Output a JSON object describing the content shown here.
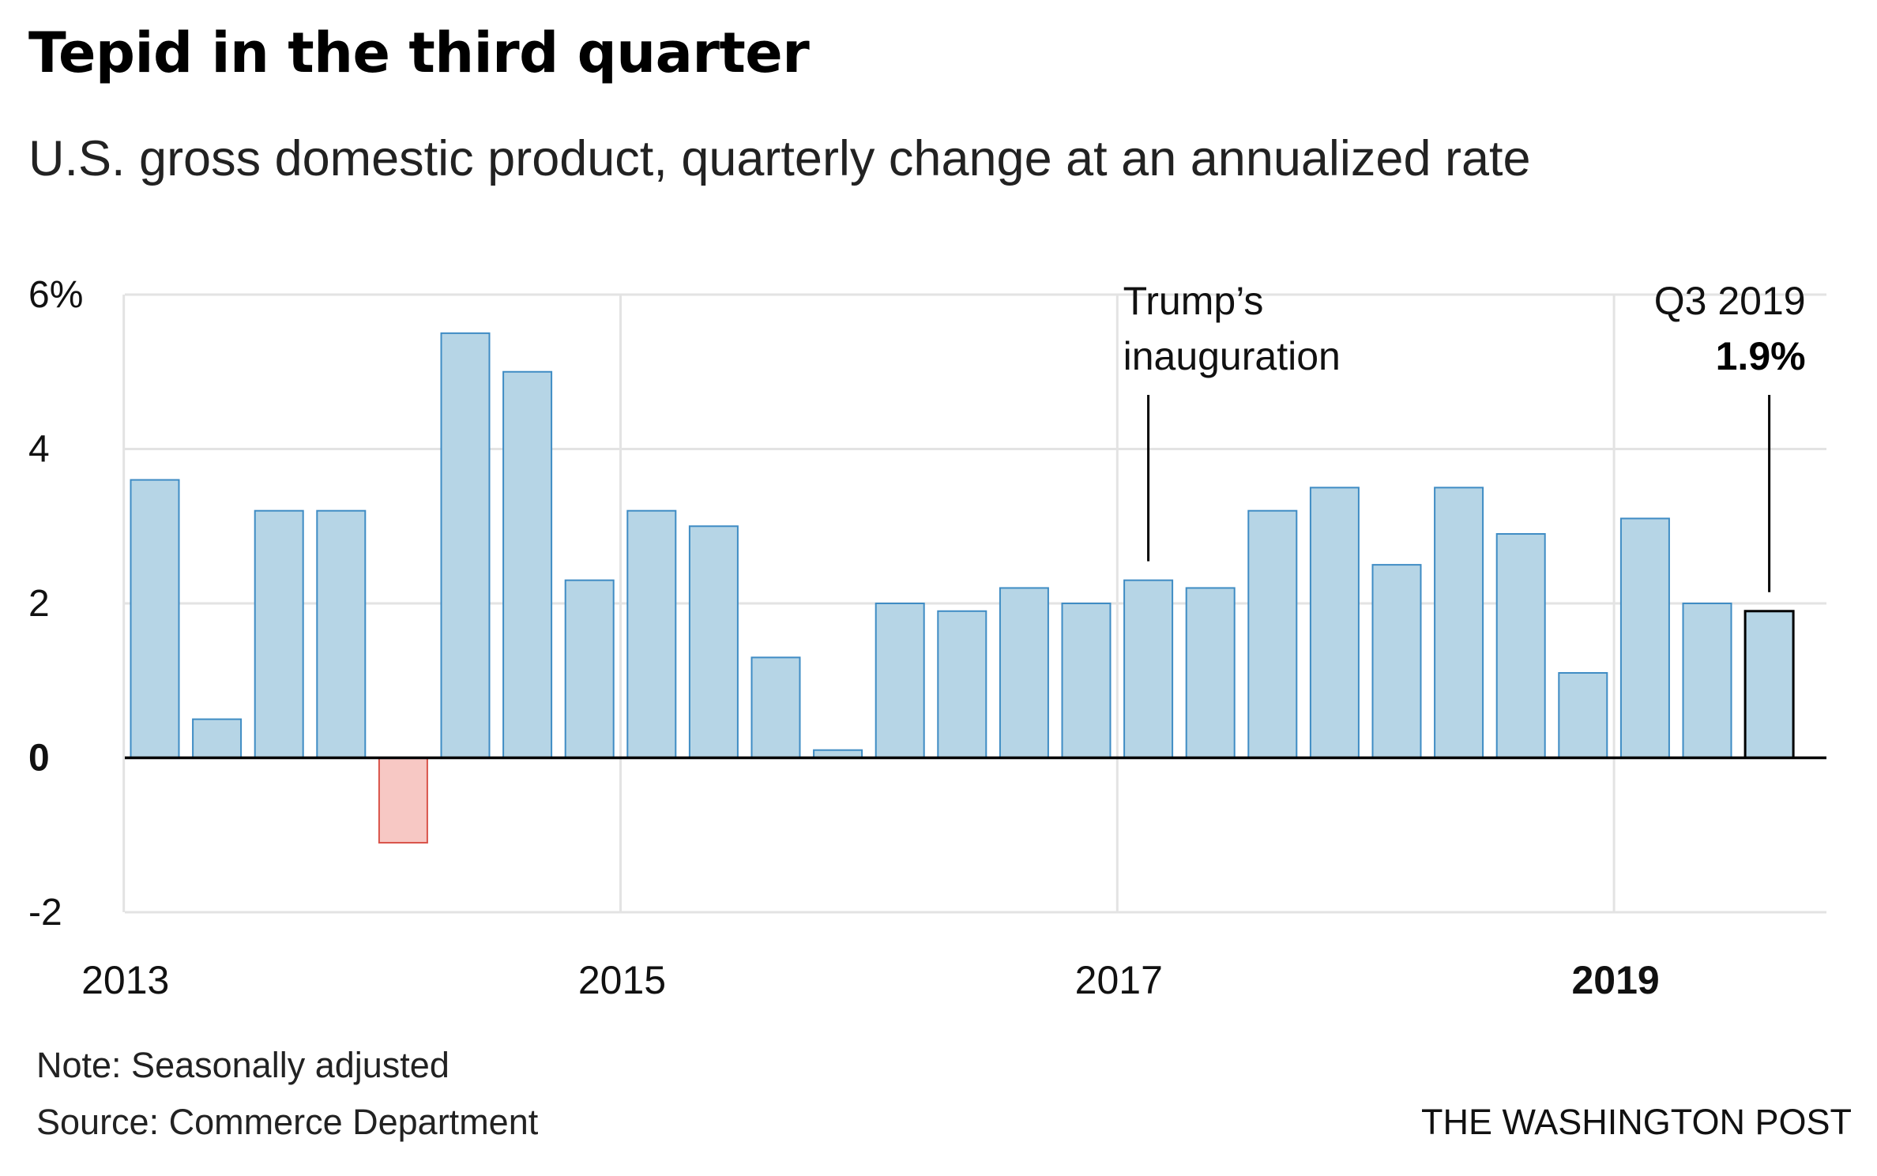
{
  "title": "Tepid in the third quarter",
  "subtitle": "U.S. gross domestic product, quarterly change at an annualized rate",
  "note": "Note: Seasonally adjusted",
  "source": "Source: Commerce Department",
  "credit": "THE WASHINGTON POST",
  "colors": {
    "positive_fill": "#b6d5e6",
    "positive_stroke": "#3f8cc4",
    "negative_fill": "#f7c8c4",
    "negative_stroke": "#d9534a",
    "highlight_stroke": "#000000",
    "grid": "#e3e3e3",
    "baseline": "#000000"
  },
  "chart_data": {
    "type": "bar",
    "x": [
      "2013 Q1",
      "2013 Q2",
      "2013 Q3",
      "2013 Q4",
      "2014 Q1",
      "2014 Q2",
      "2014 Q3",
      "2014 Q4",
      "2015 Q1",
      "2015 Q2",
      "2015 Q3",
      "2015 Q4",
      "2016 Q1",
      "2016 Q2",
      "2016 Q3",
      "2016 Q4",
      "2017 Q1",
      "2017 Q2",
      "2017 Q3",
      "2017 Q4",
      "2018 Q1",
      "2018 Q2",
      "2018 Q3",
      "2018 Q4",
      "2019 Q1",
      "2019 Q2",
      "2019 Q3"
    ],
    "values": [
      3.6,
      0.5,
      3.2,
      3.2,
      -1.1,
      5.5,
      5.0,
      2.3,
      3.2,
      3.0,
      1.3,
      0.1,
      2.0,
      1.9,
      2.2,
      2.0,
      2.3,
      2.2,
      3.2,
      3.5,
      2.5,
      3.5,
      2.9,
      1.1,
      3.1,
      2.0,
      1.9
    ],
    "ylim": [
      -2,
      6
    ],
    "y_ticks": [
      {
        "value": 6,
        "label": "6%"
      },
      {
        "value": 4,
        "label": "4"
      },
      {
        "value": 2,
        "label": "2"
      },
      {
        "value": 0,
        "label": "0",
        "bold": true
      },
      {
        "value": -2,
        "label": "-2"
      }
    ],
    "x_ticks": [
      {
        "year": "2013",
        "label": "2013",
        "bold": false
      },
      {
        "year": "2015",
        "label": "2015",
        "bold": false
      },
      {
        "year": "2017",
        "label": "2017",
        "bold": false
      },
      {
        "year": "2019",
        "label": "2019",
        "bold": true
      }
    ],
    "grid": true,
    "highlight_index": 26,
    "annotations": [
      {
        "label_lines": [
          "Trump’s",
          "inauguration"
        ],
        "target": "2017 Q1",
        "align": "left"
      },
      {
        "label_lines": [
          "Q3 2019"
        ],
        "value_label": "1.9%",
        "target": "2019 Q3",
        "align": "right"
      }
    ]
  }
}
